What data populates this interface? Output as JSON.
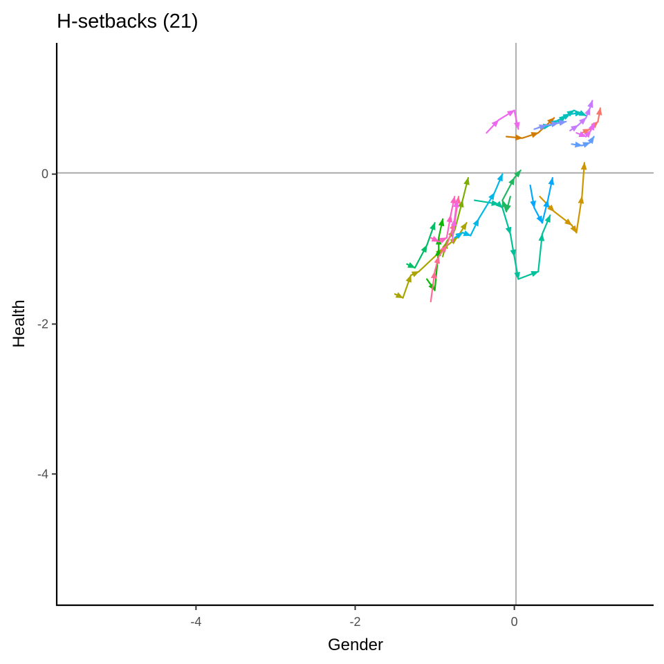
{
  "chart_data": {
    "type": "line",
    "title": "H-setbacks (21)",
    "xlabel": "Gender",
    "ylabel": "Health",
    "xlim": [
      -5.75,
      1.75
    ],
    "ylim": [
      -5.75,
      1.75
    ],
    "x_ticks": [
      -4,
      -2,
      0
    ],
    "y_ticks": [
      -4,
      -2,
      0
    ],
    "reference_lines": {
      "x": 0,
      "y": 0
    },
    "grid": false,
    "legend": "none",
    "arrows": true,
    "series": [
      {
        "color": "#F8766D",
        "x": [
          0.85,
          0.95,
          1.05,
          1.08
        ],
        "y": [
          0.55,
          0.6,
          0.7,
          0.88
        ]
      },
      {
        "color": "#E76BF3",
        "x": [
          0.78,
          0.9,
          0.96,
          1.0
        ],
        "y": [
          0.55,
          0.5,
          0.58,
          0.68
        ]
      },
      {
        "color": "#CD9600",
        "x": [
          0.32,
          0.5,
          0.72,
          0.78,
          0.85,
          0.88
        ],
        "y": [
          -0.3,
          -0.5,
          -0.68,
          -0.78,
          -0.3,
          0.15
        ]
      },
      {
        "color": "#D17A00",
        "x": [
          -0.1,
          0.1,
          0.3,
          0.5
        ],
        "y": [
          0.5,
          0.48,
          0.55,
          0.75
        ]
      },
      {
        "color": "#ABA300",
        "x": [
          -1.5,
          -1.4,
          -1.3,
          -1.2,
          -0.9,
          -0.72,
          -0.6
        ],
        "y": [
          -1.6,
          -1.65,
          -1.35,
          -1.3,
          -1.0,
          -0.85,
          -0.65
        ]
      },
      {
        "color": "#7CAE00",
        "x": [
          -0.9,
          -0.85,
          -0.75,
          -0.65,
          -0.58
        ],
        "y": [
          -1.1,
          -0.9,
          -0.75,
          -0.35,
          -0.05
        ]
      },
      {
        "color": "#00BE67",
        "x": [
          -1.35,
          -1.25,
          -1.1,
          -1.0
        ],
        "y": [
          -1.2,
          -1.25,
          -0.95,
          -0.65
        ]
      },
      {
        "color": "#0CB702",
        "x": [
          -1.1,
          -1.0,
          -0.95,
          -0.95,
          -0.9
        ],
        "y": [
          -1.4,
          -1.55,
          -1.0,
          -0.85,
          -0.6
        ]
      },
      {
        "color": "#00C19A",
        "x": [
          -0.5,
          -0.2,
          -0.15,
          -0.05,
          0.0,
          0.05,
          0.3,
          0.35,
          0.45
        ],
        "y": [
          -0.35,
          -0.4,
          -0.45,
          -0.8,
          -1.1,
          -1.4,
          -1.3,
          -0.8,
          -0.55
        ]
      },
      {
        "color": "#1FB861",
        "x": [
          -0.05,
          -0.1,
          -0.15,
          0.0,
          0.08
        ],
        "y": [
          -0.3,
          -0.5,
          -0.35,
          -0.05,
          0.05
        ]
      },
      {
        "color": "#00B8E7",
        "x": [
          -0.75,
          -0.65,
          -0.55,
          -0.45,
          -0.25,
          -0.15
        ],
        "y": [
          -0.85,
          -0.78,
          -0.82,
          -0.6,
          -0.25,
          0.0
        ]
      },
      {
        "color": "#00A9FF",
        "x": [
          0.2,
          0.25,
          0.35,
          0.42,
          0.48
        ],
        "y": [
          -0.15,
          -0.45,
          -0.65,
          -0.35,
          -0.05
        ]
      },
      {
        "color": "#00BFC4",
        "x": [
          0.3,
          0.45,
          0.55,
          0.7,
          0.85
        ],
        "y": [
          0.62,
          0.65,
          0.72,
          0.8,
          0.82
        ]
      },
      {
        "color": "#00C0B8",
        "x": [
          0.55,
          0.65,
          0.75,
          0.9
        ],
        "y": [
          0.7,
          0.78,
          0.85,
          0.78
        ]
      },
      {
        "color": "#619CFF",
        "x": [
          0.72,
          0.85,
          0.95,
          1.0
        ],
        "y": [
          0.4,
          0.38,
          0.42,
          0.5
        ]
      },
      {
        "color": "#8494FF",
        "x": [
          0.25,
          0.4,
          0.55,
          0.65
        ],
        "y": [
          0.6,
          0.65,
          0.68,
          0.7
        ]
      },
      {
        "color": "#C77CFF",
        "x": [
          0.7,
          0.8,
          0.9,
          0.95,
          0.98
        ],
        "y": [
          0.58,
          0.65,
          0.75,
          0.88,
          0.98
        ]
      },
      {
        "color": "#ED68ED",
        "x": [
          -0.35,
          -0.2,
          0.0,
          0.05
        ],
        "y": [
          0.55,
          0.72,
          0.85,
          0.6
        ]
      },
      {
        "color": "#FF61C3",
        "x": [
          -1.05,
          -0.95,
          -0.85,
          -0.8,
          -0.75
        ],
        "y": [
          -0.85,
          -0.9,
          -0.85,
          -0.55,
          -0.3
        ]
      },
      {
        "color": "#FF6C91",
        "x": [
          -1.05,
          -1.0,
          -0.95,
          -0.85,
          -0.75,
          -0.7
        ],
        "y": [
          -1.7,
          -1.3,
          -1.1,
          -0.95,
          -0.65,
          -0.3
        ]
      },
      {
        "color": "#F564E3",
        "x": [
          -0.78,
          -0.75,
          -0.72
        ],
        "y": [
          -0.9,
          -0.6,
          -0.35
        ]
      }
    ]
  }
}
